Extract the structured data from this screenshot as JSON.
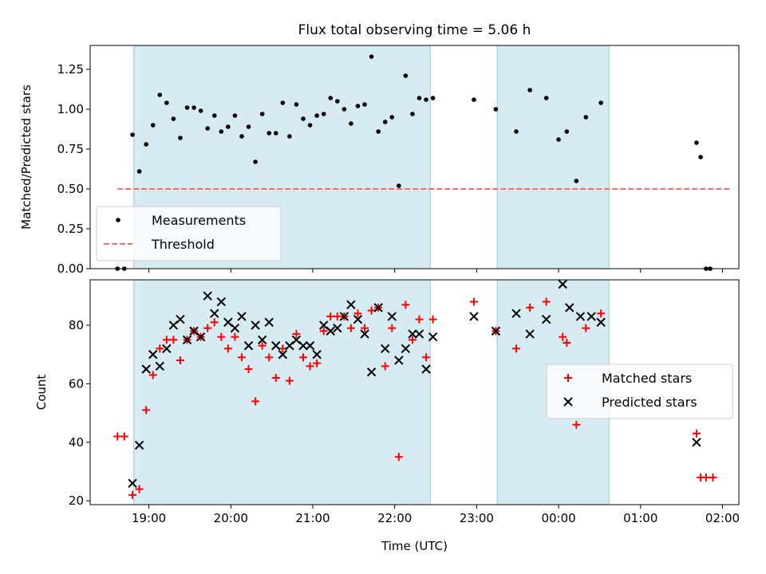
{
  "title": "Flux total observing time = 5.06 h",
  "chart_data": [
    {
      "type": "scatter",
      "ylabel": "Matched/Predicted stars",
      "ylim": [
        0,
        1.4
      ],
      "yticks": [
        "0.00",
        "0.25",
        "0.50",
        "0.75",
        "1.00",
        "1.25"
      ],
      "ytick_values": [
        0,
        0.25,
        0.5,
        0.75,
        1.0,
        1.25
      ],
      "xlim": [
        "18:17",
        "02:12"
      ],
      "shaded_intervals": [
        [
          "18:49",
          "22:26"
        ],
        [
          "23:15",
          "00:37"
        ]
      ],
      "legend_position": "lower-left",
      "series": [
        {
          "name": "Measurements",
          "color": "#000000",
          "marker": "dot",
          "points": [
            [
              "18:37",
              0.0
            ],
            [
              "18:42",
              0.0
            ],
            [
              "18:48",
              0.84
            ],
            [
              "18:53",
              0.61
            ],
            [
              "18:58",
              0.78
            ],
            [
              "19:03",
              0.9
            ],
            [
              "19:08",
              1.09
            ],
            [
              "19:13",
              1.04
            ],
            [
              "19:18",
              0.94
            ],
            [
              "19:23",
              0.82
            ],
            [
              "19:28",
              1.01
            ],
            [
              "19:33",
              1.01
            ],
            [
              "19:38",
              0.99
            ],
            [
              "19:43",
              0.88
            ],
            [
              "19:48",
              0.96
            ],
            [
              "19:53",
              0.86
            ],
            [
              "19:58",
              0.89
            ],
            [
              "20:03",
              0.96
            ],
            [
              "20:08",
              0.83
            ],
            [
              "20:13",
              0.89
            ],
            [
              "20:18",
              0.67
            ],
            [
              "20:23",
              0.97
            ],
            [
              "20:28",
              0.85
            ],
            [
              "20:33",
              0.85
            ],
            [
              "20:38",
              1.04
            ],
            [
              "20:43",
              0.83
            ],
            [
              "20:48",
              1.03
            ],
            [
              "20:53",
              0.94
            ],
            [
              "20:58",
              0.9
            ],
            [
              "21:03",
              0.96
            ],
            [
              "21:08",
              0.97
            ],
            [
              "21:13",
              1.07
            ],
            [
              "21:18",
              1.05
            ],
            [
              "21:23",
              1.0
            ],
            [
              "21:28",
              0.91
            ],
            [
              "21:33",
              1.02
            ],
            [
              "21:38",
              1.03
            ],
            [
              "21:43",
              1.33
            ],
            [
              "21:48",
              0.86
            ],
            [
              "21:53",
              0.92
            ],
            [
              "21:58",
              0.95
            ],
            [
              "22:03",
              0.52
            ],
            [
              "22:08",
              1.21
            ],
            [
              "22:13",
              0.97
            ],
            [
              "22:18",
              1.07
            ],
            [
              "22:23",
              1.06
            ],
            [
              "22:28",
              1.07
            ],
            [
              "22:58",
              1.06
            ],
            [
              "23:14",
              1.0
            ],
            [
              "23:29",
              0.86
            ],
            [
              "23:39",
              1.12
            ],
            [
              "23:51",
              1.07
            ],
            [
              "00:00",
              0.81
            ],
            [
              "00:06",
              0.86
            ],
            [
              "00:13",
              0.55
            ],
            [
              "00:20",
              0.95
            ],
            [
              "00:31",
              1.04
            ],
            [
              "01:41",
              0.79
            ],
            [
              "01:44",
              0.7
            ],
            [
              "01:48",
              0.0
            ],
            [
              "01:51",
              0.0
            ]
          ]
        },
        {
          "name": "Threshold",
          "color": "#f07070",
          "style": "dashed",
          "points": [
            [
              "18:37",
              0.5
            ],
            [
              "02:07",
              0.5
            ]
          ]
        }
      ]
    },
    {
      "type": "scatter",
      "ylabel": "Count",
      "xlabel": "Time (UTC)",
      "ylim": [
        18.7,
        95.5
      ],
      "yticks": [
        "20",
        "40",
        "60",
        "80"
      ],
      "ytick_values": [
        20,
        40,
        60,
        80
      ],
      "xlim": [
        "18:17",
        "02:12"
      ],
      "xticks": [
        "19:00",
        "20:00",
        "21:00",
        "22:00",
        "23:00",
        "00:00",
        "01:00",
        "02:00"
      ],
      "shaded_intervals": [
        [
          "18:49",
          "22:26"
        ],
        [
          "23:15",
          "00:37"
        ]
      ],
      "legend_position": "center-right",
      "series": [
        {
          "name": "Matched stars",
          "color": "#ff0000",
          "marker": "plus",
          "points": [
            [
              "18:37",
              42
            ],
            [
              "18:42",
              42
            ],
            [
              "18:48",
              22
            ],
            [
              "18:53",
              24
            ],
            [
              "18:58",
              51
            ],
            [
              "19:03",
              63
            ],
            [
              "19:08",
              72
            ],
            [
              "19:13",
              75
            ],
            [
              "19:18",
              75
            ],
            [
              "19:23",
              68
            ],
            [
              "19:28",
              75
            ],
            [
              "19:33",
              78
            ],
            [
              "19:38",
              76
            ],
            [
              "19:43",
              79
            ],
            [
              "19:48",
              81
            ],
            [
              "19:53",
              76
            ],
            [
              "19:58",
              72
            ],
            [
              "20:03",
              76
            ],
            [
              "20:08",
              69
            ],
            [
              "20:13",
              65
            ],
            [
              "20:18",
              54
            ],
            [
              "20:23",
              73
            ],
            [
              "20:28",
              69
            ],
            [
              "20:33",
              62
            ],
            [
              "20:38",
              72
            ],
            [
              "20:43",
              61
            ],
            [
              "20:48",
              77
            ],
            [
              "20:53",
              69
            ],
            [
              "20:58",
              66
            ],
            [
              "21:03",
              67
            ],
            [
              "21:08",
              78
            ],
            [
              "21:13",
              83
            ],
            [
              "21:18",
              83
            ],
            [
              "21:23",
              83
            ],
            [
              "21:28",
              79
            ],
            [
              "21:33",
              84
            ],
            [
              "21:38",
              79
            ],
            [
              "21:43",
              85
            ],
            [
              "21:48",
              86
            ],
            [
              "21:53",
              66
            ],
            [
              "21:58",
              79
            ],
            [
              "22:03",
              35
            ],
            [
              "22:08",
              87
            ],
            [
              "22:13",
              75
            ],
            [
              "22:18",
              82
            ],
            [
              "22:23",
              69
            ],
            [
              "22:28",
              82
            ],
            [
              "22:58",
              88
            ],
            [
              "23:14",
              78
            ],
            [
              "23:29",
              72
            ],
            [
              "23:39",
              86
            ],
            [
              "23:51",
              88
            ],
            [
              "00:03",
              76
            ],
            [
              "00:06",
              74
            ],
            [
              "00:13",
              46
            ],
            [
              "00:20",
              79
            ],
            [
              "00:31",
              84
            ],
            [
              "01:41",
              43
            ],
            [
              "01:44",
              28
            ],
            [
              "01:48",
              28
            ],
            [
              "01:53",
              28
            ]
          ]
        },
        {
          "name": "Predicted stars",
          "color": "#000000",
          "marker": "x",
          "points": [
            [
              "18:48",
              26
            ],
            [
              "18:53",
              39
            ],
            [
              "18:58",
              65
            ],
            [
              "19:03",
              70
            ],
            [
              "19:08",
              66
            ],
            [
              "19:13",
              72
            ],
            [
              "19:18",
              80
            ],
            [
              "19:23",
              82
            ],
            [
              "19:28",
              75
            ],
            [
              "19:33",
              78
            ],
            [
              "19:38",
              76
            ],
            [
              "19:43",
              90
            ],
            [
              "19:48",
              84
            ],
            [
              "19:53",
              88
            ],
            [
              "19:58",
              81
            ],
            [
              "20:03",
              79
            ],
            [
              "20:08",
              83
            ],
            [
              "20:13",
              73
            ],
            [
              "20:18",
              80
            ],
            [
              "20:23",
              75
            ],
            [
              "20:28",
              81
            ],
            [
              "20:33",
              73
            ],
            [
              "20:38",
              70
            ],
            [
              "20:43",
              73
            ],
            [
              "20:48",
              75
            ],
            [
              "20:53",
              73
            ],
            [
              "20:58",
              73
            ],
            [
              "21:03",
              70
            ],
            [
              "21:08",
              80
            ],
            [
              "21:13",
              78
            ],
            [
              "21:18",
              79
            ],
            [
              "21:23",
              83
            ],
            [
              "21:28",
              87
            ],
            [
              "21:33",
              82
            ],
            [
              "21:38",
              77
            ],
            [
              "21:43",
              64
            ],
            [
              "21:48",
              86
            ],
            [
              "21:53",
              72
            ],
            [
              "21:58",
              83
            ],
            [
              "22:03",
              68
            ],
            [
              "22:08",
              72
            ],
            [
              "22:13",
              77
            ],
            [
              "22:18",
              77
            ],
            [
              "22:23",
              65
            ],
            [
              "22:28",
              76
            ],
            [
              "22:58",
              83
            ],
            [
              "23:14",
              78
            ],
            [
              "23:29",
              84
            ],
            [
              "23:39",
              77
            ],
            [
              "23:51",
              82
            ],
            [
              "00:03",
              94
            ],
            [
              "00:08",
              86
            ],
            [
              "00:16",
              83
            ],
            [
              "00:24",
              83
            ],
            [
              "00:31",
              81
            ],
            [
              "01:41",
              40
            ]
          ]
        }
      ]
    }
  ]
}
